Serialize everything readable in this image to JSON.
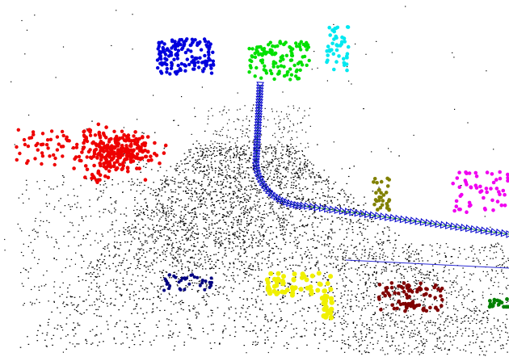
{
  "scene": {
    "background_color": "#ffffff",
    "ground_point_color": "#000000",
    "trajectory": {
      "marker_color": "#0000cc",
      "path_color": "#1a9a1a"
    },
    "ground_line_color": "#2a2ad4",
    "clusters": [
      {
        "key": "blue",
        "color": "#0000dd"
      },
      {
        "key": "green",
        "color": "#00e000"
      },
      {
        "key": "cyan",
        "color": "#00e8f0"
      },
      {
        "key": "red",
        "color": "#ee0000"
      },
      {
        "key": "olive",
        "color": "#808000"
      },
      {
        "key": "magenta",
        "color": "#f000f0"
      },
      {
        "key": "navy",
        "color": "#000080"
      },
      {
        "key": "yellow",
        "color": "#f0f000"
      },
      {
        "key": "maroon",
        "color": "#800000"
      },
      {
        "key": "darkgreen",
        "color": "#008000"
      }
    ]
  }
}
